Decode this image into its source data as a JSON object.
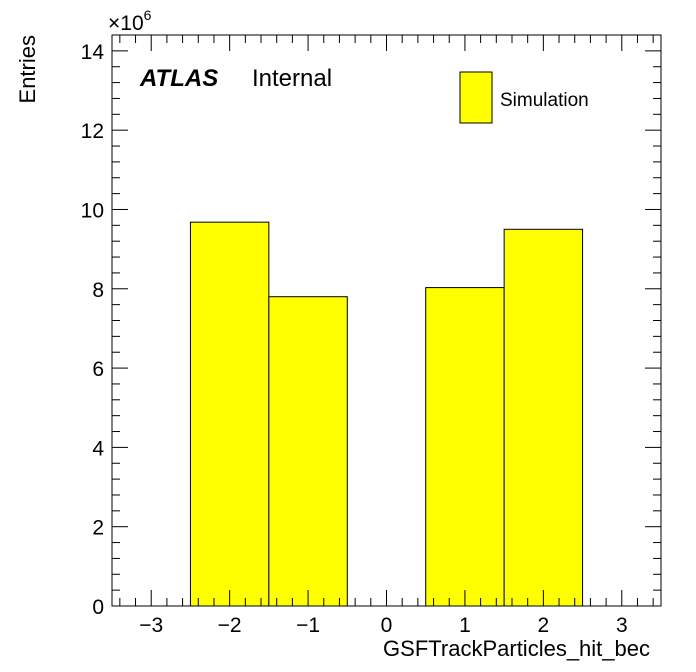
{
  "chart_data": {
    "type": "bar",
    "style": "histogram",
    "bin_edges": [
      -3.5,
      -2.5,
      -1.5,
      -0.5,
      0.5,
      1.5,
      2.5,
      3.5
    ],
    "values_e6": [
      0,
      9.68,
      7.8,
      0,
      8.03,
      9.5,
      0
    ],
    "xlim": [
      -3.5,
      3.5
    ],
    "ylim": [
      0,
      14.4
    ],
    "x_ticks": [
      -3,
      -2,
      -1,
      0,
      1,
      2,
      3
    ],
    "x_tick_labels": [
      "−3",
      "−2",
      "−1",
      "0",
      "1",
      "2",
      "3"
    ],
    "y_ticks": [
      0,
      2,
      4,
      6,
      8,
      10,
      12,
      14
    ],
    "y_tick_labels": [
      "0",
      "2",
      "4",
      "6",
      "8",
      "10",
      "12",
      "14"
    ],
    "y_multiplier_base": "×10",
    "y_multiplier_exp": "6",
    "xlabel": "GSFTrackParticles_hit_bec",
    "ylabel": "Entries",
    "fill_color": "#ffff00",
    "line_color": "#000000",
    "legend": {
      "placement": "top-right",
      "entries": [
        {
          "name": "Simulation",
          "color": "#ffff00"
        }
      ]
    },
    "annotation": {
      "bold": "ATLAS",
      "text": "Internal"
    },
    "grid": false
  }
}
